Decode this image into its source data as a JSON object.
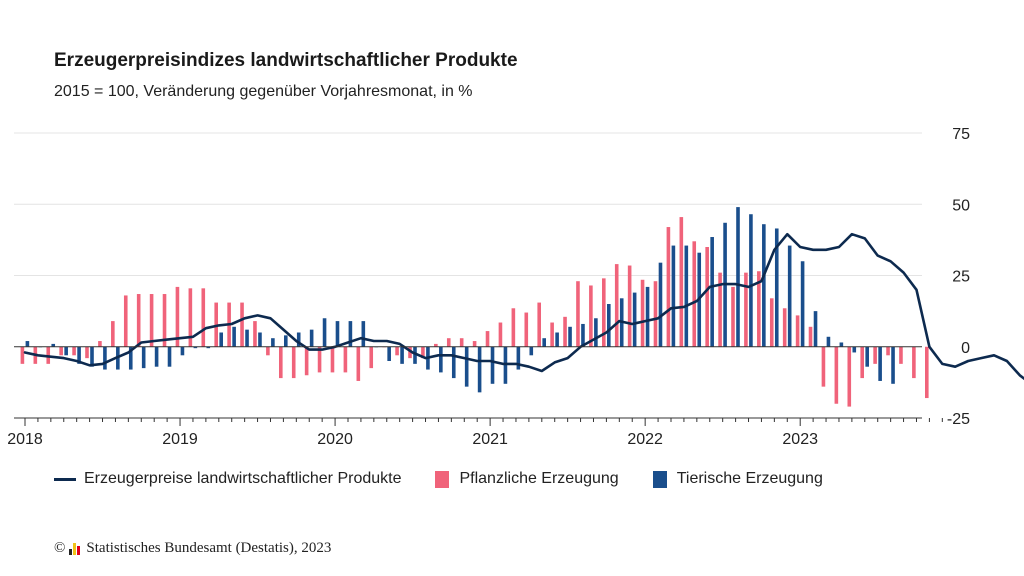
{
  "title": "Erzeugerpreisindizes landwirtschaftlicher Produkte",
  "subtitle": "2015 = 100, Veränderung gegenüber Vorjahresmonat, in %",
  "source": {
    "copyright": "©",
    "text": "Statistisches Bundesamt (Destatis), 2023",
    "logo_colors": [
      "#222222",
      "#f0c419",
      "#e2001a"
    ]
  },
  "colors": {
    "line": "#0d2a4f",
    "plant": "#f0637a",
    "animal": "#1a4e8c",
    "grid": "#e4e4e4",
    "axis": "#333333"
  },
  "chart_data": {
    "type": "bar",
    "x_labels": [
      "2018",
      "2019",
      "2020",
      "2021",
      "2022",
      "2023"
    ],
    "yticks": [
      75,
      50,
      25,
      0,
      -25
    ],
    "ylim": [
      -25,
      75
    ],
    "legend_position": "bottom",
    "grid": true,
    "series": [
      {
        "name": "Erzeugerpreise landwirtschaftlicher Produkte",
        "kind": "line",
        "values": [
          -2,
          -3,
          -3.5,
          -4,
          -5,
          -6.5,
          -6,
          -4,
          -2,
          1.5,
          2,
          2.5,
          3,
          3.5,
          6.5,
          7.5,
          8,
          10,
          11,
          10,
          6,
          2,
          -1,
          -1,
          0,
          1.5,
          3,
          2,
          2,
          1,
          -2,
          -4,
          -3,
          -3,
          -4,
          -5,
          -5,
          -6,
          -6,
          -7,
          -8.5,
          -5.5,
          -4,
          0,
          2.5,
          5,
          9,
          8,
          9,
          10,
          13.5,
          14,
          16,
          21,
          22,
          22,
          21,
          23,
          34,
          39.5,
          35,
          34,
          34,
          35,
          39.5,
          38,
          32,
          30,
          26,
          20,
          0,
          -6,
          -7,
          -5,
          -4,
          -3,
          -5,
          -10,
          -13.5
        ]
      },
      {
        "name": "Pflanzliche Erzeugung",
        "kind": "bar",
        "values": [
          -6,
          -6,
          -6,
          -3,
          -3,
          -4,
          2,
          9,
          18,
          18.5,
          18.5,
          18.5,
          21,
          20.5,
          20.5,
          15.5,
          15.5,
          15.5,
          9,
          -3,
          -11,
          -11,
          -10,
          -9,
          -9,
          -9,
          -12,
          -7.5,
          0,
          -3,
          -4,
          -4,
          1,
          3,
          3,
          2,
          5.5,
          8.5,
          13.5,
          12,
          15.5,
          8.5,
          10.5,
          23,
          21.5,
          24,
          29,
          28.5,
          23.5,
          23,
          42,
          45.5,
          37,
          35,
          26,
          21,
          26,
          26.5,
          17,
          13.5,
          11,
          7,
          -14,
          -20,
          -21,
          -11,
          -6,
          -3,
          -6,
          -11,
          -18
        ]
      },
      {
        "name": "Tierische Erzeugung",
        "kind": "bar",
        "values": [
          2,
          0,
          1,
          -3,
          -6,
          -7,
          -8,
          -8,
          -8,
          -7.5,
          -7,
          -7,
          -3,
          -0.5,
          -0.5,
          5,
          7,
          6,
          5,
          3,
          4,
          5,
          6,
          10,
          9,
          9,
          9,
          0,
          -5,
          -6,
          -6,
          -8,
          -9,
          -11,
          -14,
          -16,
          -13,
          -13,
          -8,
          -3,
          3,
          5,
          7,
          8,
          10,
          15,
          17,
          19,
          21,
          29.5,
          35.5,
          35.5,
          33,
          38.5,
          43.5,
          49,
          46.5,
          43,
          41.5,
          35.5,
          30,
          12.5,
          3.5,
          1.5,
          -2,
          -7,
          -12,
          -13
        ]
      }
    ]
  }
}
